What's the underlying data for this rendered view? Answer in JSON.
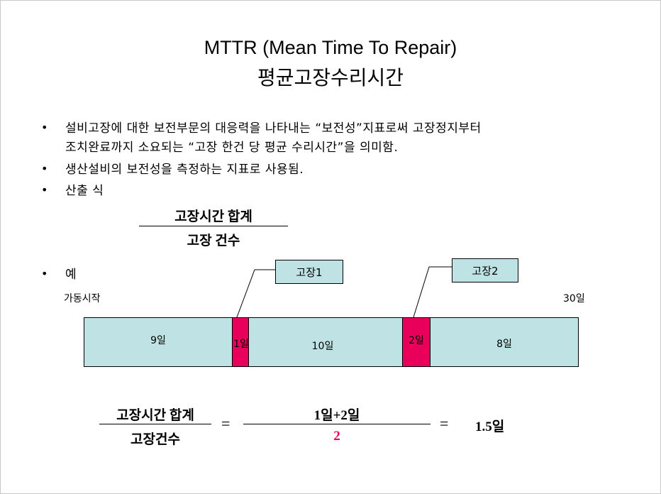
{
  "title": {
    "line1": "MTTR (Mean Time To Repair)",
    "line2": "평균고장수리시간"
  },
  "bullets": [
    {
      "marker": "•",
      "lines": [
        "설비고장에 대한 보전부문의 대응력을 나타내는 “보전성”지표로써 고장정지부터",
        "조치완료까지 소요되는 “고장 한건 당 평균 수리시간”을 의미함."
      ]
    },
    {
      "marker": "•",
      "lines": [
        "생산설비의 보전성을 측정하는 지표로 사용됨."
      ]
    },
    {
      "marker": "•",
      "lines": [
        "산출 식"
      ]
    },
    {
      "marker": "•",
      "lines": [
        "예"
      ]
    }
  ],
  "formula": {
    "numerator": "고장시간 합계",
    "denominator": "고장 건수"
  },
  "timeline": {
    "start_label": "가동시작",
    "end_label": "30일",
    "total_days": 30,
    "segments": [
      {
        "label": "9일",
        "days": 9,
        "type": "normal"
      },
      {
        "label": "1일",
        "days": 1,
        "type": "failure"
      },
      {
        "label": "10일",
        "days": 10,
        "type": "normal"
      },
      {
        "label": "2일",
        "days": 2,
        "type": "failure"
      },
      {
        "label": "8일",
        "days": 8,
        "type": "normal"
      }
    ],
    "callouts": [
      "고장1",
      "고장2"
    ],
    "colors": {
      "normal": "#bfe3e4",
      "failure": "#e8005a"
    }
  },
  "calculation": {
    "numerator": "고장시간 합계",
    "denominator": "고장건수",
    "equals": "=",
    "value_numerator": "1일+2일",
    "value_denominator": "2",
    "result": "1.5일",
    "accent_color": "#e8005a"
  }
}
